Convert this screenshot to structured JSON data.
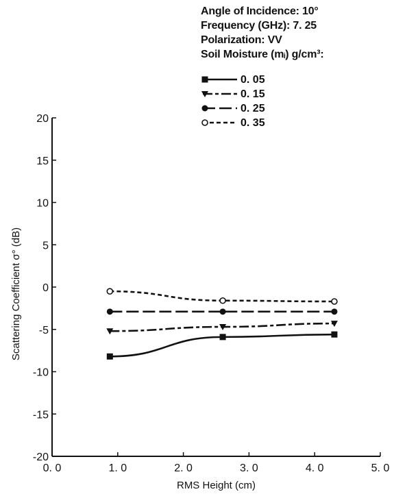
{
  "info": {
    "angle": "Angle of Incidence:  10°",
    "frequency": "Frequency (GHz):  7. 25",
    "polarization": "Polarization:  VV",
    "moisture": "Soil Moisture (mᵢ) g/cm³:"
  },
  "chart_data": {
    "type": "line",
    "xlabel": "RMS Height (cm)",
    "ylabel": "Scattering Coefficient σ° (dB)",
    "xlim": [
      0,
      5
    ],
    "ylim": [
      -20,
      20
    ],
    "x_ticks": [
      "0. 0",
      "1. 0",
      "2. 0",
      "3. 0",
      "4. 0",
      "5. 0"
    ],
    "x_tick_values": [
      0,
      1,
      2,
      3,
      4,
      5
    ],
    "y_ticks": [
      "20",
      "15",
      "10",
      "5",
      "0",
      "-5",
      "-10",
      "-15",
      "-20"
    ],
    "y_tick_values": [
      20,
      15,
      10,
      5,
      0,
      -5,
      -10,
      -15,
      -20
    ],
    "grid": false,
    "legend_position": "top-right",
    "series": [
      {
        "name": "0. 05",
        "marker": "square",
        "dash": "solid",
        "x": [
          0.88,
          2.6,
          4.3
        ],
        "y": [
          -8.2,
          -5.9,
          -5.6
        ]
      },
      {
        "name": "0. 15",
        "marker": "triangle",
        "dash": "longshort",
        "x": [
          0.88,
          2.6,
          4.3
        ],
        "y": [
          -5.2,
          -4.7,
          -4.3
        ]
      },
      {
        "name": "0. 25",
        "marker": "filled-circle",
        "dash": "longdash",
        "x": [
          0.88,
          2.6,
          4.3
        ],
        "y": [
          -2.9,
          -2.9,
          -2.9
        ]
      },
      {
        "name": "0. 35",
        "marker": "open-circle",
        "dash": "short",
        "x": [
          0.88,
          2.6,
          4.3
        ],
        "y": [
          -0.5,
          -1.6,
          -1.7
        ]
      }
    ]
  }
}
